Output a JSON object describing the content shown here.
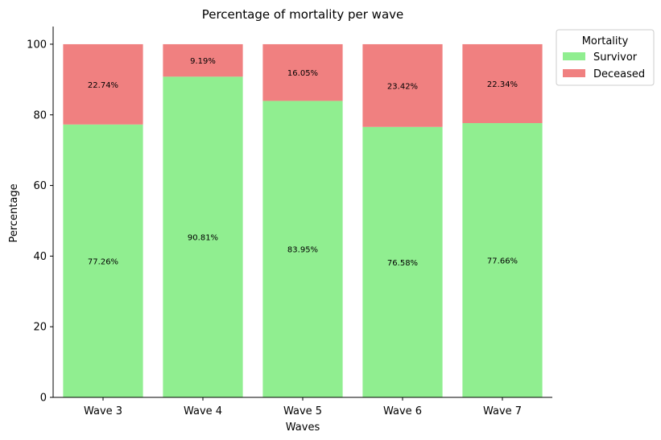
{
  "chart_data": {
    "type": "bar",
    "stacked": true,
    "title": "Percentage of mortality per wave",
    "xlabel": "Waves",
    "ylabel": "Percentage",
    "ylim": [
      0,
      105
    ],
    "yticks": [
      0,
      20,
      40,
      60,
      80,
      100
    ],
    "grid": false,
    "legend": {
      "title": "Mortality",
      "placement": "upper-right-outside"
    },
    "categories": [
      "Wave 3",
      "Wave 4",
      "Wave 5",
      "Wave 6",
      "Wave 7"
    ],
    "series": [
      {
        "name": "Survivor",
        "color": "#90EE90",
        "values": [
          77.26,
          90.81,
          83.95,
          76.58,
          77.66
        ],
        "labels": [
          "77.26%",
          "90.81%",
          "83.95%",
          "76.58%",
          "77.66%"
        ]
      },
      {
        "name": "Deceased",
        "color": "#F08080",
        "values": [
          22.74,
          9.19,
          16.05,
          23.42,
          22.34
        ],
        "labels": [
          "22.74%",
          "9.19%",
          "16.05%",
          "23.42%",
          "22.34%"
        ]
      }
    ]
  }
}
